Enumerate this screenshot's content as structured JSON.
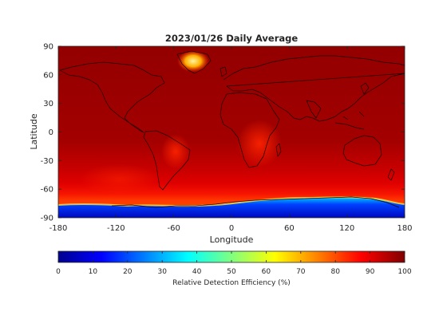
{
  "chart_data": {
    "type": "heatmap",
    "title": "2023/01/26 Daily Average",
    "xlabel": "Longitude",
    "ylabel": "Latitude",
    "xlim": [
      -180,
      180
    ],
    "ylim": [
      -90,
      90
    ],
    "x_ticks": [
      -180,
      -120,
      -60,
      0,
      60,
      120,
      180
    ],
    "y_ticks": [
      -90,
      -60,
      -30,
      0,
      30,
      60,
      90
    ],
    "grid": false,
    "colorbar": {
      "label": "Relative Detection Efficiency (%)",
      "range": [
        0,
        100
      ],
      "ticks": [
        0,
        10,
        20,
        30,
        40,
        50,
        60,
        70,
        80,
        90,
        100
      ],
      "colormap": "jet",
      "placement": "bottom"
    },
    "colors": {
      "dominant": "#990000",
      "tropics": "#cc0000",
      "high_latitude": "#ff1a00",
      "antarctic_low": "#0011cc",
      "greenland_low": "#ffcc00"
    }
  }
}
